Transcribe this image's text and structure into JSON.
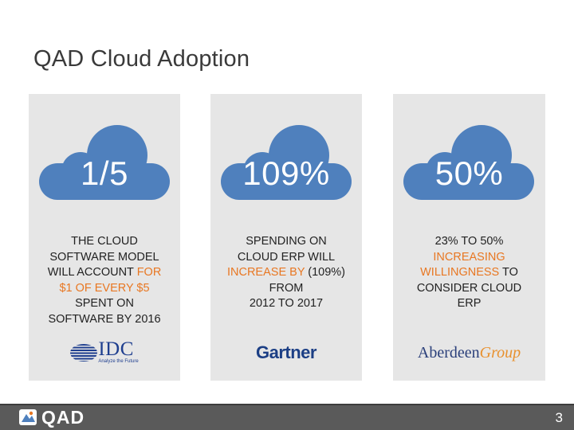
{
  "slide": {
    "title": "QAD Cloud Adoption",
    "page_number": "3"
  },
  "cards": [
    {
      "stat": "1/5",
      "lines": [
        [
          {
            "t": "THE CLOUD",
            "hl": false
          }
        ],
        [
          {
            "t": "SOFTWARE MODEL",
            "hl": false
          }
        ],
        [
          {
            "t": "WILL ACCOUNT ",
            "hl": false
          },
          {
            "t": "FOR",
            "hl": true
          }
        ],
        [
          {
            "t": "$1 OF EVERY $5",
            "hl": true
          }
        ],
        [
          {
            "t": "SPENT ON",
            "hl": false
          }
        ],
        [
          {
            "t": "SOFTWARE BY 2016",
            "hl": false
          }
        ]
      ],
      "source": {
        "word": "IDC",
        "tagline": "Analyze the Future"
      }
    },
    {
      "stat": "109%",
      "lines": [
        [
          {
            "t": "SPENDING ON",
            "hl": false
          }
        ],
        [
          {
            "t": "CLOUD ERP WILL",
            "hl": false
          }
        ],
        [
          {
            "t": "INCREASE BY",
            "hl": true
          },
          {
            "t": " (109%)",
            "hl": false
          }
        ],
        [
          {
            "t": "FROM",
            "hl": false
          }
        ],
        [
          {
            "t": "2012 TO 2017",
            "hl": false
          }
        ]
      ],
      "source": {
        "word": "Gartner"
      }
    },
    {
      "stat": "50%",
      "lines": [
        [
          {
            "t": "23% TO 50%",
            "hl": false
          }
        ],
        [
          {
            "t": "INCREASING",
            "hl": true
          }
        ],
        [
          {
            "t": "WILLINGNESS",
            "hl": true
          },
          {
            "t": " TO",
            "hl": false
          }
        ],
        [
          {
            "t": "CONSIDER CLOUD",
            "hl": false
          }
        ],
        [
          {
            "t": "ERP",
            "hl": false
          }
        ]
      ],
      "source": {
        "word": "Aberdeen",
        "word2": "Group"
      }
    }
  ],
  "footer": {
    "brand": "QAD"
  },
  "colors": {
    "cloud": "#4f80bd",
    "highlight": "#e87722",
    "card_bg": "#e6e6e6",
    "footer_bg": "#5a5a5a"
  },
  "icons": [
    "cloud-icon",
    "qad-logo-icon"
  ]
}
